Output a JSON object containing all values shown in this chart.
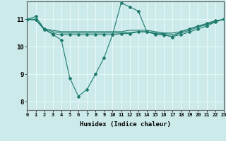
{
  "xlabel": "Humidex (Indice chaleur)",
  "xlim": [
    0,
    23
  ],
  "ylim": [
    7.7,
    11.65
  ],
  "yticks": [
    8,
    9,
    10,
    11
  ],
  "xticks": [
    0,
    1,
    2,
    3,
    4,
    5,
    6,
    7,
    8,
    9,
    10,
    11,
    12,
    13,
    14,
    15,
    16,
    17,
    18,
    19,
    20,
    21,
    22,
    23
  ],
  "bg_color": "#cceaea",
  "line_color": "#1e7b6e",
  "grid_color": "#e8f8f8",
  "lines": [
    {
      "x": [
        0,
        1,
        2,
        3,
        4,
        5,
        6,
        7,
        8,
        9,
        10,
        11,
        12,
        13,
        14,
        15,
        16,
        17,
        18,
        19,
        20,
        21,
        22,
        23
      ],
      "y": [
        11.0,
        11.1,
        10.65,
        10.45,
        10.25,
        8.85,
        8.2,
        8.45,
        9.0,
        9.6,
        10.45,
        11.6,
        11.45,
        11.3,
        10.55,
        10.45,
        10.45,
        10.35,
        10.55,
        10.65,
        10.75,
        10.85,
        10.95,
        11.0
      ],
      "has_markers": true
    },
    {
      "x": [
        0,
        1,
        2,
        3,
        4,
        5,
        6,
        7,
        8,
        9,
        10,
        11,
        12,
        13,
        14,
        15,
        16,
        17,
        18,
        19,
        20,
        21,
        22,
        23
      ],
      "y": [
        11.0,
        11.0,
        10.65,
        10.6,
        10.55,
        10.55,
        10.55,
        10.55,
        10.55,
        10.55,
        10.55,
        10.55,
        10.6,
        10.6,
        10.6,
        10.55,
        10.5,
        10.5,
        10.55,
        10.65,
        10.75,
        10.82,
        10.92,
        11.0
      ],
      "has_markers": false
    },
    {
      "x": [
        0,
        1,
        2,
        3,
        4,
        5,
        6,
        7,
        8,
        9,
        10,
        11,
        12,
        13,
        14,
        15,
        16,
        17,
        18,
        19,
        20,
        21,
        22,
        23
      ],
      "y": [
        11.0,
        11.0,
        10.65,
        10.55,
        10.5,
        10.5,
        10.5,
        10.5,
        10.5,
        10.5,
        10.5,
        10.5,
        10.52,
        10.55,
        10.55,
        10.5,
        10.48,
        10.45,
        10.5,
        10.6,
        10.72,
        10.8,
        10.92,
        11.0
      ],
      "has_markers": false
    },
    {
      "x": [
        0,
        1,
        2,
        3,
        4,
        5,
        6,
        7,
        8,
        9,
        10,
        11,
        12,
        13,
        14,
        15,
        16,
        17,
        18,
        19,
        20,
        21,
        22,
        23
      ],
      "y": [
        10.98,
        10.98,
        10.62,
        10.48,
        10.44,
        10.44,
        10.44,
        10.44,
        10.44,
        10.44,
        10.44,
        10.48,
        10.48,
        10.54,
        10.54,
        10.48,
        10.42,
        10.38,
        10.44,
        10.54,
        10.65,
        10.75,
        10.9,
        11.0
      ],
      "has_markers": true
    }
  ]
}
